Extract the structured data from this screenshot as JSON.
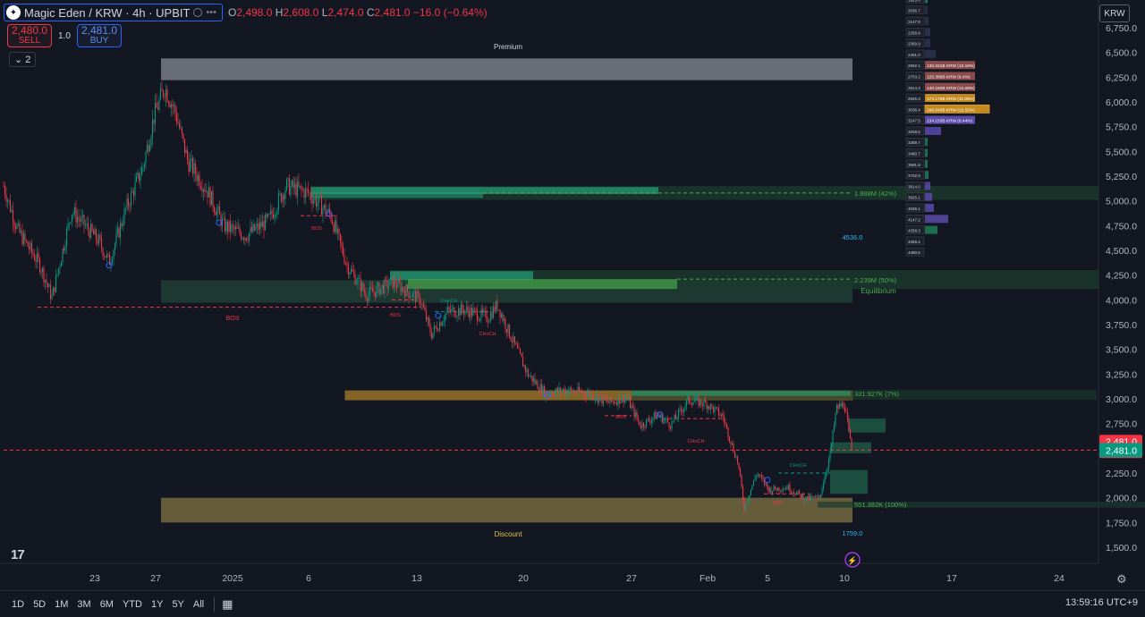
{
  "header": {
    "symbol_title": "Magic Eden / KRW · 4h · UPBIT",
    "ohlc": {
      "o_key": "O",
      "o_val": "2,498.0",
      "h_key": "H",
      "h_val": "2,608.0",
      "l_key": "L",
      "l_val": "2,474.0",
      "c_key": "C",
      "c_val": "2,481.0 −16.0 (−0.64%)"
    },
    "sell_price": "2,480.0",
    "sell_label": "SELL",
    "spread": "1.0",
    "buy_price": "2,481.0",
    "buy_label": "BUY",
    "indicator_count": "2",
    "currency": "KRW"
  },
  "price_axis": {
    "ticks": [
      "6,750.0",
      "6,500.0",
      "6,250.0",
      "6,000.0",
      "5,750.0",
      "5,500.0",
      "5,250.0",
      "5,000.0",
      "4,750.0",
      "4,500.0",
      "4,250.0",
      "4,000.0",
      "3,750.0",
      "3,500.0",
      "3,250.0",
      "3,000.0",
      "2,750.0",
      "2,500.0",
      "2,250.0",
      "2,000.0",
      "1,750.0",
      "1,500.0"
    ],
    "tick_values": [
      6750,
      6500,
      6250,
      6000,
      5750,
      5500,
      5250,
      5000,
      4750,
      4500,
      4250,
      4000,
      3750,
      3500,
      3250,
      3000,
      2750,
      2500,
      2250,
      2000,
      1750,
      1500
    ],
    "last_price": "2,481.0",
    "countdown": "03:00:43",
    "bid_price": "2,481.0",
    "last_color": "#f23645",
    "bid_color": "#089981"
  },
  "time_axis": {
    "labels": [
      "23",
      "27",
      "2025",
      "6",
      "13",
      "20",
      "27",
      "Feb",
      "5",
      "10",
      "17",
      "24"
    ]
  },
  "annotations": {
    "premium": "Premium",
    "discount": "Discount",
    "equilibrium": "Equilibrium",
    "swing_high_value": "4536.0",
    "swing_low_value": "1759.0",
    "vol_1": "1.888M (42%)",
    "vol_2": "2.239M (50%)",
    "vol_3": "331.927K (7%)",
    "vol_4": "551.382K (100%)",
    "bos": "BOS",
    "choch": "CHoCH"
  },
  "volume_profile": {
    "levels": [
      "4480.5",
      "4369.4",
      "4258.3",
      "4147.2",
      "4036.1",
      "3925.1",
      "3814.0",
      "3702.9",
      "3591.8",
      "3480.7",
      "3369.7",
      "3258.6",
      "3147.5",
      "3036.4",
      "2925.3",
      "2814.3",
      "2703.2",
      "2592.1",
      "2481.0",
      "2369.9",
      "2258.9",
      "2147.8",
      "2036.7",
      "1925.6",
      "1814.5"
    ],
    "poc_labels": [
      "134.153B KRW (8.44%)",
      "188.046B KRW (12.55%)",
      "173.178B KRW (11.95%)",
      "140.182B KRW (10.09%)",
      "125.389B KRW (9.4%)",
      "130.021B KRW (10.16%)"
    ]
  },
  "bottom_bar": {
    "ranges": [
      "1D",
      "5D",
      "1M",
      "3M",
      "6M",
      "YTD",
      "1Y",
      "5Y",
      "All"
    ],
    "clock": "13:59:16 UTC+9"
  },
  "colors": {
    "background": "#131722",
    "up": "#089981",
    "down": "#f23645",
    "premium_zone": "#d1d4dc",
    "discount_zone": "#c9b25a",
    "order_block_green": "#1e7d5c",
    "order_block_orange": "#e0a32b"
  }
}
